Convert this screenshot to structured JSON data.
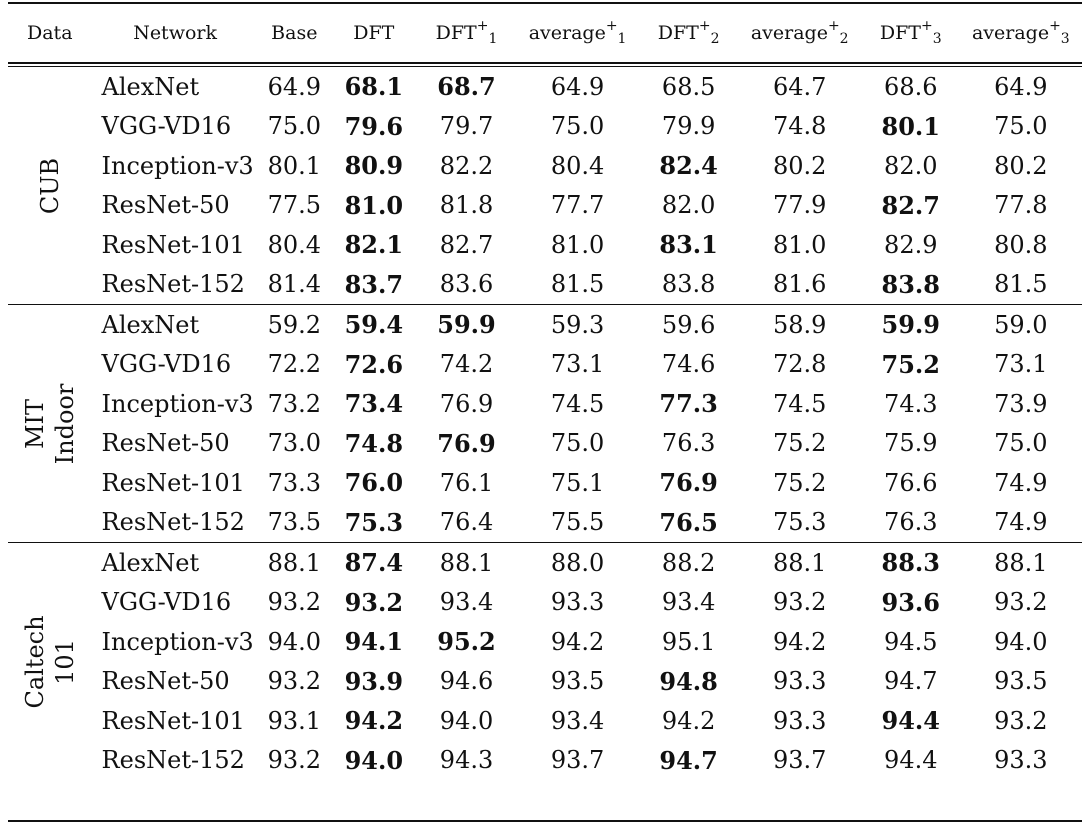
{
  "header": {
    "data": "Data",
    "network": "Network",
    "base": "Base",
    "dft": "DFT",
    "dft1_main": "DFT",
    "dft1_sup": "+",
    "dft1_sub": "1",
    "avg1_main": "average",
    "avg1_sup": "+",
    "avg1_sub": "1",
    "dft2_main": "DFT",
    "dft2_sup": "+",
    "dft2_sub": "2",
    "avg2_main": "average",
    "avg2_sup": "+",
    "avg2_sub": "2",
    "dft3_main": "DFT",
    "dft3_sup": "+",
    "dft3_sub": "3",
    "avg3_main": "average",
    "avg3_sup": "+",
    "avg3_sub": "3"
  },
  "groups": [
    {
      "label_line1": "CUB",
      "label_line2": "",
      "rows": [
        {
          "network": "AlexNet",
          "values": [
            "64.9",
            "68.1",
            "68.7",
            "64.9",
            "68.5",
            "64.7",
            "68.6",
            "64.9"
          ],
          "bold": [
            1,
            2
          ]
        },
        {
          "network": "VGG-VD16",
          "values": [
            "75.0",
            "79.6",
            "79.7",
            "75.0",
            "79.9",
            "74.8",
            "80.1",
            "75.0"
          ],
          "bold": [
            1,
            6
          ]
        },
        {
          "network": "Inception-v3",
          "values": [
            "80.1",
            "80.9",
            "82.2",
            "80.4",
            "82.4",
            "80.2",
            "82.0",
            "80.2"
          ],
          "bold": [
            1,
            4
          ]
        },
        {
          "network": "ResNet-50",
          "values": [
            "77.5",
            "81.0",
            "81.8",
            "77.7",
            "82.0",
            "77.9",
            "82.7",
            "77.8"
          ],
          "bold": [
            1,
            6
          ]
        },
        {
          "network": "ResNet-101",
          "values": [
            "80.4",
            "82.1",
            "82.7",
            "81.0",
            "83.1",
            "81.0",
            "82.9",
            "80.8"
          ],
          "bold": [
            1,
            4
          ]
        },
        {
          "network": "ResNet-152",
          "values": [
            "81.4",
            "83.7",
            "83.6",
            "81.5",
            "83.8",
            "81.6",
            "83.8",
            "81.5"
          ],
          "bold": [
            1,
            6
          ]
        }
      ]
    },
    {
      "label_line1": "MIT",
      "label_line2": "Indoor",
      "rows": [
        {
          "network": "AlexNet",
          "values": [
            "59.2",
            "59.4",
            "59.9",
            "59.3",
            "59.6",
            "58.9",
            "59.9",
            "59.0"
          ],
          "bold": [
            1,
            2,
            6
          ]
        },
        {
          "network": "VGG-VD16",
          "values": [
            "72.2",
            "72.6",
            "74.2",
            "73.1",
            "74.6",
            "72.8",
            "75.2",
            "73.1"
          ],
          "bold": [
            1,
            6
          ]
        },
        {
          "network": "Inception-v3",
          "values": [
            "73.2",
            "73.4",
            "76.9",
            "74.5",
            "77.3",
            "74.5",
            "74.3",
            "73.9"
          ],
          "bold": [
            1,
            4
          ]
        },
        {
          "network": "ResNet-50",
          "values": [
            "73.0",
            "74.8",
            "76.9",
            "75.0",
            "76.3",
            "75.2",
            "75.9",
            "75.0"
          ],
          "bold": [
            1,
            2
          ]
        },
        {
          "network": "ResNet-101",
          "values": [
            "73.3",
            "76.0",
            "76.1",
            "75.1",
            "76.9",
            "75.2",
            "76.6",
            "74.9"
          ],
          "bold": [
            1,
            4
          ]
        },
        {
          "network": "ResNet-152",
          "values": [
            "73.5",
            "75.3",
            "76.4",
            "75.5",
            "76.5",
            "75.3",
            "76.3",
            "74.9"
          ],
          "bold": [
            1,
            4
          ]
        }
      ]
    },
    {
      "label_line1": "Caltech",
      "label_line2": "101",
      "rows": [
        {
          "network": "AlexNet",
          "values": [
            "88.1",
            "87.4",
            "88.1",
            "88.0",
            "88.2",
            "88.1",
            "88.3",
            "88.1"
          ],
          "bold": [
            1,
            6
          ]
        },
        {
          "network": "VGG-VD16",
          "values": [
            "93.2",
            "93.2",
            "93.4",
            "93.3",
            "93.4",
            "93.2",
            "93.6",
            "93.2"
          ],
          "bold": [
            1,
            6
          ]
        },
        {
          "network": "Inception-v3",
          "values": [
            "94.0",
            "94.1",
            "95.2",
            "94.2",
            "95.1",
            "94.2",
            "94.5",
            "94.0"
          ],
          "bold": [
            1,
            2
          ]
        },
        {
          "network": "ResNet-50",
          "values": [
            "93.2",
            "93.9",
            "94.6",
            "93.5",
            "94.8",
            "93.3",
            "94.7",
            "93.5"
          ],
          "bold": [
            1,
            4
          ]
        },
        {
          "network": "ResNet-101",
          "values": [
            "93.1",
            "94.2",
            "94.0",
            "93.4",
            "94.2",
            "93.3",
            "94.4",
            "93.2"
          ],
          "bold": [
            1,
            6
          ]
        },
        {
          "network": "ResNet-152",
          "values": [
            "93.2",
            "94.0",
            "94.3",
            "93.7",
            "94.7",
            "93.7",
            "94.4",
            "93.3"
          ],
          "bold": [
            1,
            4
          ]
        }
      ]
    }
  ]
}
